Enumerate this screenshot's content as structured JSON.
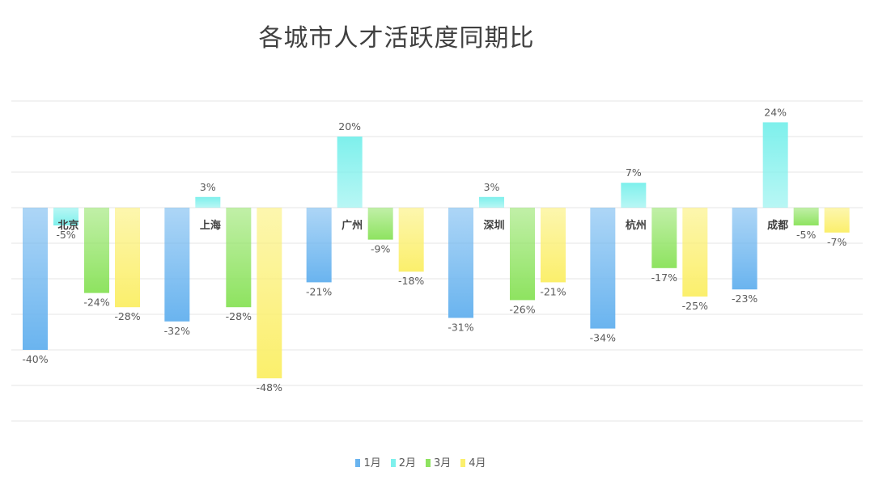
{
  "chart_data": {
    "type": "bar",
    "title": "各城市人才活跃度同期比",
    "categories": [
      "北京",
      "上海",
      "广州",
      "深圳",
      "杭州",
      "成都"
    ],
    "series": [
      {
        "name": "1月",
        "values": [
          -40,
          -32,
          -21,
          -31,
          -34,
          -23
        ],
        "color": "#6ab4ef"
      },
      {
        "name": "2月",
        "values": [
          -5,
          3,
          20,
          3,
          7,
          24
        ],
        "color": "#7ef0ec"
      },
      {
        "name": "3月",
        "values": [
          -24,
          -28,
          -9,
          -26,
          -17,
          -5
        ],
        "color": "#8ee360"
      },
      {
        "name": "4月",
        "values": [
          -28,
          -48,
          -18,
          -21,
          -25,
          -7
        ],
        "color": "#fbef6c"
      }
    ],
    "ylim": [
      -60,
      30
    ],
    "grid": true,
    "legend_position": "bottom",
    "value_suffix": "%"
  }
}
